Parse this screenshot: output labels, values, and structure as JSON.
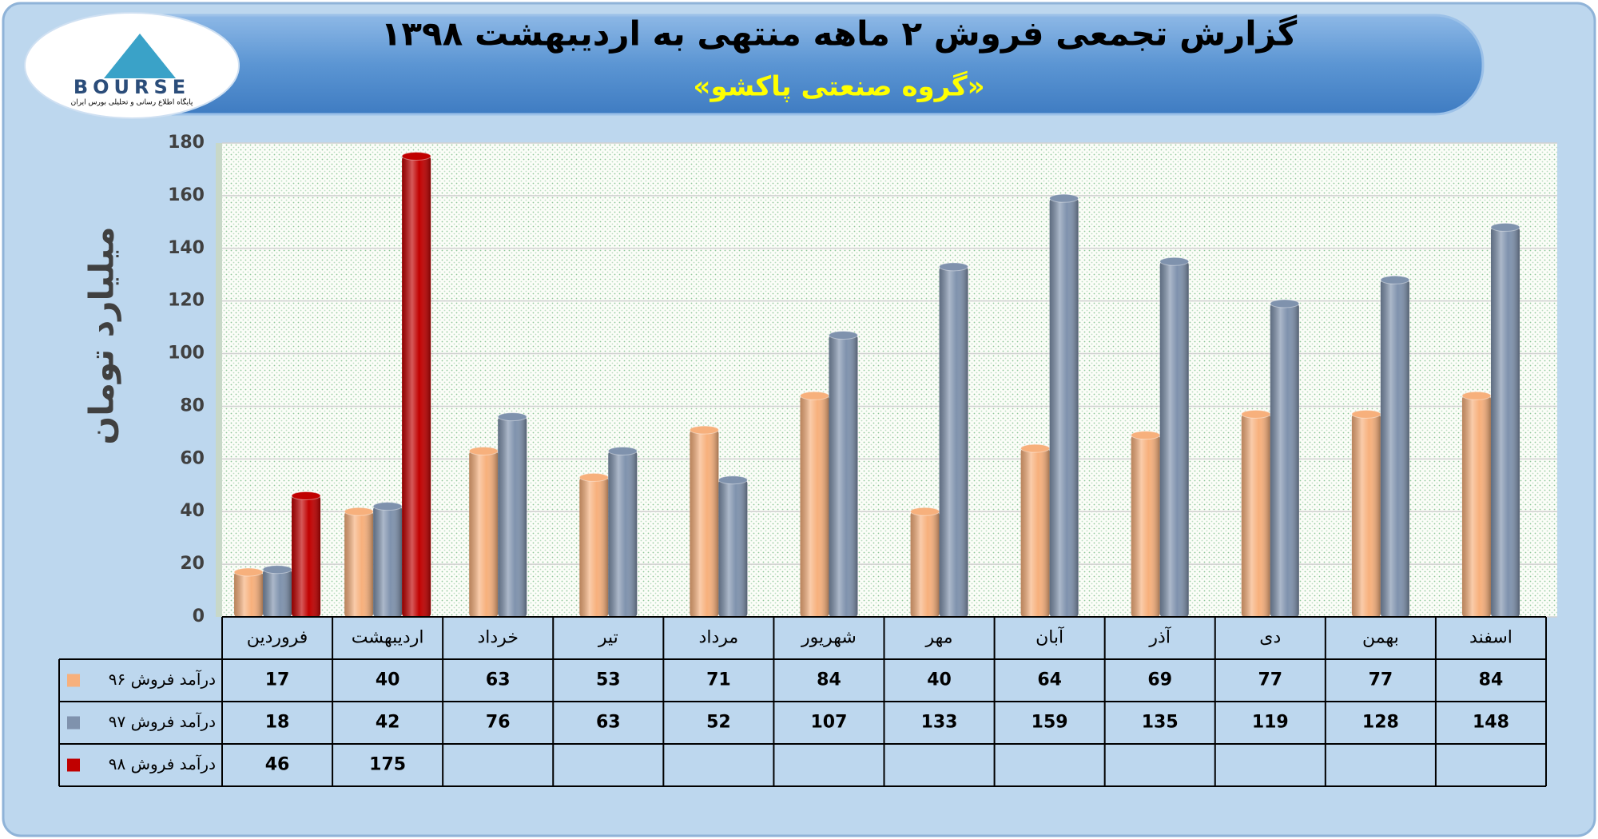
{
  "chart_data": {
    "type": "bar",
    "title": "گزارش تجمعی فروش ۲ ماهه منتهی به اردیبهشت ۱۳۹۸",
    "subtitle": "«گروه صنعتی پاکشو»",
    "logo_text": "BOURSE",
    "logo_caption": "پایگاه اطلاع رسانی و تحلیلی بورس ایران",
    "y_label": "میلیارد تومان",
    "categories": [
      "فروردین",
      "اردیبهشت",
      "خرداد",
      "تیر",
      "مرداد",
      "شهریور",
      "مهر",
      "آبان",
      "آذر",
      "دی",
      "بهمن",
      "اسفند"
    ],
    "series": [
      {
        "name": "درآمد فروش ۹۶",
        "color": "#f7b07c",
        "values": [
          17,
          40,
          63,
          53,
          71,
          84,
          40,
          64,
          69,
          77,
          77,
          84
        ]
      },
      {
        "name": "درآمد فروش ۹۷",
        "color": "#7f92ad",
        "values": [
          18,
          42,
          76,
          63,
          52,
          107,
          133,
          159,
          135,
          119,
          128,
          148
        ]
      },
      {
        "name": "درآمد فروش ۹۸",
        "color": "#c00000",
        "values": [
          46,
          175,
          null,
          null,
          null,
          null,
          null,
          null,
          null,
          null,
          null,
          null
        ]
      }
    ],
    "ylim": [
      0,
      180
    ],
    "yticks": [
      0,
      20,
      40,
      60,
      80,
      100,
      120,
      140,
      160,
      180
    ],
    "grid": true
  }
}
